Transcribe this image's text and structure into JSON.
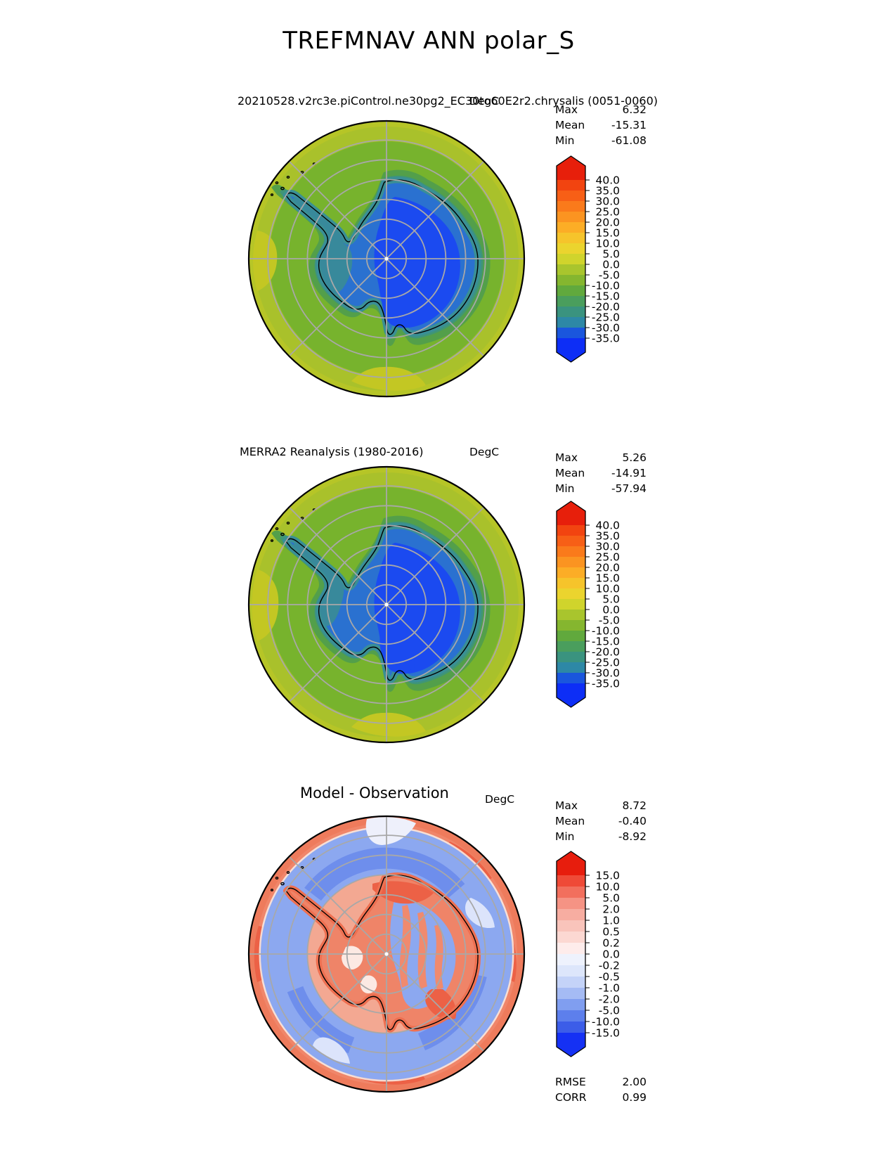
{
  "figure": {
    "title": "TREFMNAV ANN polar_S"
  },
  "panels": [
    {
      "id": "model",
      "title": "20210528.v2rc3e.piControl.ne30pg2_EC30to60E2r2.chrysalis (0051-0060)",
      "units": "DegC",
      "stats": [
        {
          "label": "Max",
          "value": "6.32"
        },
        {
          "label": "Mean",
          "value": "-15.31"
        },
        {
          "label": "Min",
          "value": "-61.08"
        }
      ],
      "colorbar": {
        "ticks": [
          "40.0",
          "35.0",
          "30.0",
          "25.0",
          "20.0",
          "15.0",
          "10.0",
          "5.0",
          "0.0",
          "-5.0",
          "-10.0",
          "-15.0",
          "-20.0",
          "-25.0",
          "-30.0",
          "-35.0"
        ],
        "colors": [
          "#e71f0b",
          "#f24410",
          "#f75f16",
          "#fa7a1b",
          "#fb9421",
          "#fcad26",
          "#f6c42b",
          "#ebd42e",
          "#d0d42c",
          "#a9c52d",
          "#85b62f",
          "#61a93d",
          "#4a9e5d",
          "#3a937f",
          "#2d88a6",
          "#1a56dd",
          "#0d2ef6"
        ]
      }
    },
    {
      "id": "obs",
      "title": "MERRA2 Reanalysis (1980-2016)",
      "units": "DegC",
      "stats": [
        {
          "label": "Max",
          "value": "5.26"
        },
        {
          "label": "Mean",
          "value": "-14.91"
        },
        {
          "label": "Min",
          "value": "-57.94"
        }
      ],
      "colorbar": {
        "ticks": [
          "40.0",
          "35.0",
          "30.0",
          "25.0",
          "20.0",
          "15.0",
          "10.0",
          "5.0",
          "0.0",
          "-5.0",
          "-10.0",
          "-15.0",
          "-20.0",
          "-25.0",
          "-30.0",
          "-35.0"
        ],
        "colors": [
          "#e71f0b",
          "#f24410",
          "#f75f16",
          "#fa7a1b",
          "#fb9421",
          "#fcad26",
          "#f6c42b",
          "#ebd42e",
          "#d0d42c",
          "#a9c52d",
          "#85b62f",
          "#61a93d",
          "#4a9e5d",
          "#3a937f",
          "#2d88a6",
          "#1a56dd",
          "#0d2ef6"
        ]
      }
    },
    {
      "id": "diff",
      "title": "Model - Observation",
      "units": "DegC",
      "stats": [
        {
          "label": "Max",
          "value": "8.72"
        },
        {
          "label": "Mean",
          "value": "-0.40"
        },
        {
          "label": "Min",
          "value": "-8.92"
        }
      ],
      "colorbar": {
        "ticks": [
          "15.0",
          "10.0",
          "5.0",
          "2.0",
          "1.0",
          "0.5",
          "0.2",
          "0.0",
          "-0.2",
          "-0.5",
          "-1.0",
          "-2.0",
          "-5.0",
          "-10.0",
          "-15.0"
        ],
        "colors": [
          "#e71d0d",
          "#ef4a37",
          "#f26f5d",
          "#f59384",
          "#f7ada1",
          "#f9c4bb",
          "#fcd8d2",
          "#feeceb",
          "#eef2fd",
          "#dde6fb",
          "#c4d3f8",
          "#a5bbf4",
          "#809ef0",
          "#5d7fec",
          "#3c5de8",
          "#1531f4"
        ]
      },
      "metrics": [
        {
          "label": "RMSE",
          "value": "2.00"
        },
        {
          "label": "CORR",
          "value": "0.99"
        }
      ]
    }
  ],
  "chart_data": [
    {
      "type": "heatmap",
      "subtype": "polar_stereographic_contour_map",
      "variable": "TREFMNAV",
      "season": "ANN",
      "region": "polar_S",
      "title": "20210528.v2rc3e.piControl.ne30pg2_EC30to60E2r2.chrysalis (0051-0060)",
      "units": "DegC",
      "levels": [
        -35,
        -30,
        -25,
        -20,
        -15,
        -10,
        -5,
        0,
        5,
        10,
        15,
        20,
        25,
        30,
        35,
        40
      ],
      "extend": "both",
      "stats": {
        "max": 6.32,
        "mean": -15.31,
        "min": -61.08
      },
      "graticule": {
        "lat_circle_count": 6,
        "lon_spoke_step_deg": 45
      }
    },
    {
      "type": "heatmap",
      "subtype": "polar_stereographic_contour_map",
      "variable": "TREFMNAV",
      "season": "ANN",
      "region": "polar_S",
      "title": "MERRA2 Reanalysis (1980-2016)",
      "units": "DegC",
      "levels": [
        -35,
        -30,
        -25,
        -20,
        -15,
        -10,
        -5,
        0,
        5,
        10,
        15,
        20,
        25,
        30,
        35,
        40
      ],
      "extend": "both",
      "stats": {
        "max": 5.26,
        "mean": -14.91,
        "min": -57.94
      },
      "graticule": {
        "lat_circle_count": 6,
        "lon_spoke_step_deg": 45
      }
    },
    {
      "type": "heatmap",
      "subtype": "polar_stereographic_contour_map",
      "variable": "TREFMNAV",
      "season": "ANN",
      "region": "polar_S",
      "title": "Model - Observation",
      "units": "DegC",
      "levels": [
        -15,
        -10,
        -5,
        -2,
        -1,
        -0.5,
        -0.2,
        0,
        0.2,
        0.5,
        1,
        2,
        5,
        10,
        15
      ],
      "extend": "both",
      "stats": {
        "max": 8.72,
        "mean": -0.4,
        "min": -8.92
      },
      "metrics": {
        "rmse": 2.0,
        "corr": 0.99
      },
      "graticule": {
        "lat_circle_count": 6,
        "lon_spoke_step_deg": 45
      }
    }
  ]
}
